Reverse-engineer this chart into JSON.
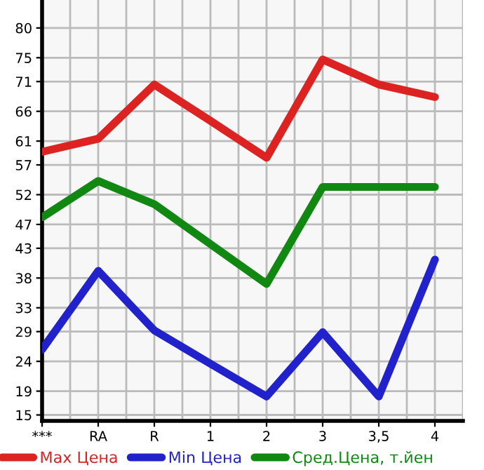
{
  "chart_data": {
    "type": "line",
    "categories": [
      "***",
      "RA",
      "R",
      "1",
      "2",
      "3",
      "3,5",
      "4"
    ],
    "ylim": [
      14,
      84.7
    ],
    "yticks": [
      15,
      19,
      24,
      29,
      33,
      38,
      43,
      47,
      52,
      57,
      61,
      66,
      71,
      75,
      80
    ],
    "grid": true,
    "legend": "bottom",
    "marker": "none",
    "line_style": "solid",
    "series": [
      {
        "name": "Max Цена",
        "color": "#dd2222",
        "values": [
          59.2,
          61.4,
          70.5,
          64.4,
          58.2,
          74.7,
          70.5,
          68.4
        ]
      },
      {
        "name": "Min Цена",
        "color": "#2222cc",
        "values": [
          26.0,
          39.2,
          29.2,
          23.6,
          18.1,
          28.9,
          18.1,
          41.1
        ]
      },
      {
        "name": "Сред.Цена, т.йен",
        "color": "#118811",
        "values": [
          48.2,
          54.3,
          50.4,
          43.7,
          37.0,
          53.3,
          53.3,
          53.3
        ]
      }
    ]
  }
}
